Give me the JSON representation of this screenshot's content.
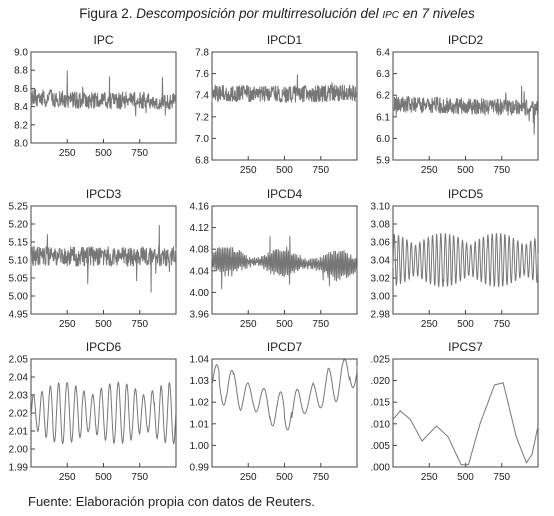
{
  "figure": {
    "title_prefix": "Figura 2. ",
    "title_italic_1": "Descomposición por multirresolución del ",
    "title_smallcaps": "IPC",
    "title_italic_2": " en 7 niveles",
    "source": "Fuente: Elaboración propia con datos de Reuters."
  },
  "chart_data": [
    {
      "type": "line",
      "title": "IPC",
      "x_ticks": [
        "250",
        "500",
        "750"
      ],
      "xlim": [
        0,
        1000
      ],
      "y_ticks": [
        "8.0",
        "8.2",
        "8.4",
        "8.6",
        "8.8",
        "9.0"
      ],
      "ylim": [
        8.0,
        9.0
      ],
      "series": [
        {
          "style": "noise",
          "center": 8.47,
          "amplitude": 0.12,
          "points": [
            [
              0,
              8.5
            ],
            [
              250,
              8.48
            ],
            [
              500,
              8.46
            ],
            [
              750,
              8.47
            ],
            [
              1000,
              8.45
            ]
          ]
        }
      ]
    },
    {
      "type": "line",
      "title": "IPCD1",
      "x_ticks": [
        "250",
        "500",
        "750"
      ],
      "xlim": [
        0,
        1000
      ],
      "y_ticks": [
        "6.8",
        "7.0",
        "7.2",
        "7.4",
        "7.6",
        "7.8"
      ],
      "ylim": [
        6.8,
        7.8
      ],
      "series": [
        {
          "style": "noise",
          "center": 7.42,
          "amplitude": 0.1,
          "points": [
            [
              0,
              7.42
            ],
            [
              500,
              7.41
            ],
            [
              1000,
              7.42
            ]
          ]
        }
      ]
    },
    {
      "type": "line",
      "title": "IPCD2",
      "x_ticks": [
        "250",
        "500",
        "750"
      ],
      "xlim": [
        0,
        1000
      ],
      "y_ticks": [
        "5.9",
        "6.0",
        "6.1",
        "6.2",
        "6.3",
        "6.4"
      ],
      "ylim": [
        5.9,
        6.4
      ],
      "series": [
        {
          "style": "noise",
          "center": 6.15,
          "amplitude": 0.05,
          "points": [
            [
              0,
              6.16
            ],
            [
              500,
              6.15
            ],
            [
              1000,
              6.14
            ]
          ]
        }
      ]
    },
    {
      "type": "line",
      "title": "IPCD3",
      "x_ticks": [
        "250",
        "500",
        "750"
      ],
      "xlim": [
        0,
        1000
      ],
      "y_ticks": [
        "4.95",
        "5.00",
        "5.05",
        "5.10",
        "5.15",
        "5.20",
        "5.25"
      ],
      "ylim": [
        4.95,
        5.25
      ],
      "series": [
        {
          "style": "noise",
          "center": 5.11,
          "amplitude": 0.035,
          "points": [
            [
              0,
              5.11
            ],
            [
              500,
              5.11
            ],
            [
              1000,
              5.11
            ]
          ]
        }
      ]
    },
    {
      "type": "line",
      "title": "IPCD4",
      "x_ticks": [
        "250",
        "500",
        "750"
      ],
      "xlim": [
        0,
        1000
      ],
      "y_ticks": [
        "3.96",
        "4.00",
        "4.04",
        "4.08",
        "4.12",
        "4.16"
      ],
      "ylim": [
        3.96,
        4.16
      ],
      "series": [
        {
          "style": "oscillation",
          "center": 4.055,
          "amplitude": 0.025,
          "points": [
            [
              0,
              4.06
            ],
            [
              500,
              4.055
            ],
            [
              1000,
              4.05
            ]
          ]
        }
      ]
    },
    {
      "type": "line",
      "title": "IPCD5",
      "x_ticks": [
        "250",
        "500",
        "750"
      ],
      "xlim": [
        0,
        1000
      ],
      "y_ticks": [
        "2.98",
        "3.00",
        "3.02",
        "3.04",
        "3.06",
        "3.08",
        "3.10"
      ],
      "ylim": [
        2.98,
        3.1
      ],
      "series": [
        {
          "style": "wave",
          "center": 3.04,
          "amplitude": 0.03,
          "points": [
            [
              0,
              3.04
            ],
            [
              500,
              3.04
            ],
            [
              1000,
              3.04
            ]
          ]
        }
      ]
    },
    {
      "type": "line",
      "title": "IPCD6",
      "x_ticks": [
        "250",
        "500",
        "750"
      ],
      "xlim": [
        0,
        1000
      ],
      "y_ticks": [
        "1.99",
        "2.00",
        "2.01",
        "2.02",
        "2.03",
        "2.04",
        "2.05"
      ],
      "ylim": [
        1.99,
        2.05
      ],
      "series": [
        {
          "style": "wave",
          "center": 2.02,
          "amplitude": 0.017,
          "points": [
            [
              0,
              2.02
            ],
            [
              500,
              2.02
            ],
            [
              1000,
              2.02
            ]
          ]
        }
      ]
    },
    {
      "type": "line",
      "title": "IPCD7",
      "x_ticks": [
        "250",
        "500",
        "750"
      ],
      "xlim": [
        0,
        1000
      ],
      "y_ticks": [
        "0.99",
        "1.00",
        "1.01",
        "1.02",
        "1.03",
        "1.04"
      ],
      "ylim": [
        0.99,
        1.04
      ],
      "series": [
        {
          "style": "wave",
          "center": 1.017,
          "amplitude": 0.009,
          "points": [
            [
              0,
              1.03
            ],
            [
              500,
              1.015
            ],
            [
              1000,
              1.035
            ]
          ]
        }
      ]
    },
    {
      "type": "line",
      "title": "IPCS7",
      "x_ticks": [
        "250",
        "500",
        "750"
      ],
      "xlim": [
        0,
        1000
      ],
      "y_ticks": [
        ".000",
        ".005",
        ".010",
        ".015",
        ".020",
        ".025"
      ],
      "ylim": [
        0.0,
        0.025
      ],
      "series": [
        {
          "style": "smooth",
          "points": [
            [
              0,
              0.011
            ],
            [
              50,
              0.013
            ],
            [
              120,
              0.011
            ],
            [
              200,
              0.006
            ],
            [
              300,
              0.0095
            ],
            [
              380,
              0.007
            ],
            [
              470,
              0.0005
            ],
            [
              520,
              0.0005
            ],
            [
              600,
              0.01
            ],
            [
              700,
              0.019
            ],
            [
              760,
              0.0195
            ],
            [
              850,
              0.007
            ],
            [
              920,
              0.001
            ],
            [
              960,
              0.003
            ],
            [
              1000,
              0.0095
            ]
          ]
        }
      ]
    }
  ]
}
